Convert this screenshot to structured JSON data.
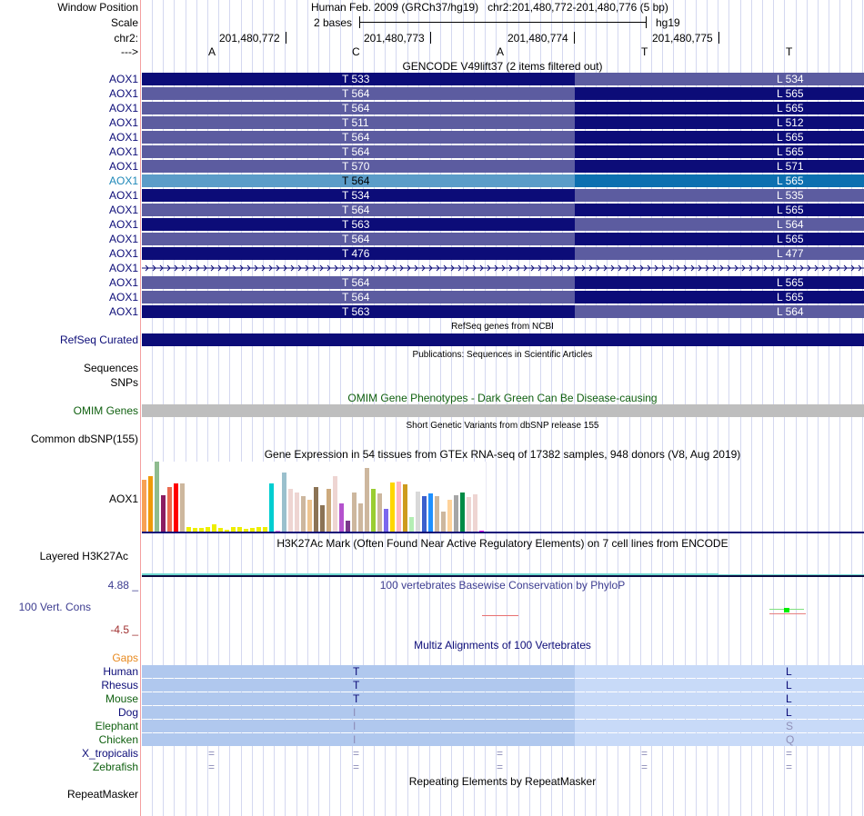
{
  "header": {
    "window_position_label": "Window Position",
    "scale_label": "Scale",
    "chrom_label": "chr2:",
    "strand_label": "--->",
    "assembly_title": "Human Feb. 2009 (GRCh37/hg19)   chr2:201,480,772-201,480,776 (5 bp)",
    "scale_text": "2 bases",
    "scale_assembly": "hg19",
    "positions": [
      "201,480,772",
      "201,480,773",
      "201,480,774",
      "201,480,775"
    ],
    "bases": [
      "A",
      "C",
      "A",
      "T",
      "T"
    ]
  },
  "gencode": {
    "title": "GENCODE V49lift37 (2 items filtered out)",
    "colors": {
      "dark": "#0c0c78",
      "light": "#5c5ca0",
      "highlight_light": "#5b9cc8",
      "highlight_dark": "#0c70b0"
    },
    "rows": [
      {
        "label": "AOX1",
        "left": "T 533",
        "right": "L 534",
        "left_shade": "dark",
        "right_shade": "light"
      },
      {
        "label": "AOX1",
        "left": "T 564",
        "right": "L 565",
        "left_shade": "light",
        "right_shade": "dark"
      },
      {
        "label": "AOX1",
        "left": "T 564",
        "right": "L 565",
        "left_shade": "light",
        "right_shade": "dark"
      },
      {
        "label": "AOX1",
        "left": "T 511",
        "right": "L 512",
        "left_shade": "light",
        "right_shade": "dark"
      },
      {
        "label": "AOX1",
        "left": "T 564",
        "right": "L 565",
        "left_shade": "light",
        "right_shade": "dark"
      },
      {
        "label": "AOX1",
        "left": "T 564",
        "right": "L 565",
        "left_shade": "light",
        "right_shade": "dark"
      },
      {
        "label": "AOX1",
        "left": "T 570",
        "right": "L 571",
        "left_shade": "light",
        "right_shade": "dark"
      },
      {
        "label": "AOX1",
        "left": "T 564",
        "right": "L 565",
        "left_shade": "highlight_light",
        "right_shade": "highlight_dark",
        "highlighted": true
      },
      {
        "label": "AOX1",
        "left": "T 534",
        "right": "L 535",
        "left_shade": "dark",
        "right_shade": "light"
      },
      {
        "label": "AOX1",
        "left": "T 564",
        "right": "L 565",
        "left_shade": "light",
        "right_shade": "dark"
      },
      {
        "label": "AOX1",
        "left": "T 563",
        "right": "L 564",
        "left_shade": "dark",
        "right_shade": "light"
      },
      {
        "label": "AOX1",
        "left": "T 564",
        "right": "L 565",
        "left_shade": "light",
        "right_shade": "dark"
      },
      {
        "label": "AOX1",
        "left": "T 476",
        "right": "L 477",
        "left_shade": "dark",
        "right_shade": "light"
      },
      {
        "label": "AOX1",
        "intron": true
      },
      {
        "label": "AOX1",
        "left": "T 564",
        "right": "L 565",
        "left_shade": "light",
        "right_shade": "dark"
      },
      {
        "label": "AOX1",
        "left": "T 564",
        "right": "L 565",
        "left_shade": "light",
        "right_shade": "dark"
      },
      {
        "label": "AOX1",
        "left": "T 563",
        "right": "L 564",
        "left_shade": "dark",
        "right_shade": "light"
      }
    ]
  },
  "refseq": {
    "title": "RefSeq genes from NCBI",
    "label": "RefSeq Curated"
  },
  "publications": {
    "title": "Publications: Sequences in Scientific Articles",
    "label_line1": "Sequences",
    "label_line2": "SNPs"
  },
  "omim": {
    "title": "OMIM Gene Phenotypes - Dark Green Can Be Disease-causing",
    "label": "OMIM Genes"
  },
  "dbsnp": {
    "title": "Short Genetic Variants from dbSNP release 155",
    "label": "Common dbSNP(155)"
  },
  "gtex": {
    "title": "Gene Expression in 54 tissues from GTEx RNA-seq of 17382 samples, 948 donors (V8, Aug 2019)",
    "label": "AOX1",
    "bars": [
      {
        "v": 0.74,
        "c": "#f7a155"
      },
      {
        "v": 0.79,
        "c": "#ee9a0a"
      },
      {
        "v": 1.0,
        "c": "#8fbc8f"
      },
      {
        "v": 0.52,
        "c": "#8b1c62"
      },
      {
        "v": 0.64,
        "c": "#ea6b50"
      },
      {
        "v": 0.69,
        "c": "#ff0000"
      },
      {
        "v": 0.69,
        "c": "#cdb79e"
      },
      {
        "v": 0.06,
        "c": "#eeee00"
      },
      {
        "v": 0.05,
        "c": "#eeee00"
      },
      {
        "v": 0.05,
        "c": "#eeee00"
      },
      {
        "v": 0.07,
        "c": "#eeee00"
      },
      {
        "v": 0.11,
        "c": "#eeee00"
      },
      {
        "v": 0.05,
        "c": "#eeee00"
      },
      {
        "v": 0.03,
        "c": "#eeee00"
      },
      {
        "v": 0.07,
        "c": "#eeee00"
      },
      {
        "v": 0.07,
        "c": "#eeee00"
      },
      {
        "v": 0.04,
        "c": "#eeee00"
      },
      {
        "v": 0.05,
        "c": "#eeee00"
      },
      {
        "v": 0.07,
        "c": "#eeee00"
      },
      {
        "v": 0.06,
        "c": "#eeee00"
      },
      {
        "v": 0.69,
        "c": "#00ced1"
      },
      {
        "v": 0.01,
        "c": "#ee82ee"
      },
      {
        "v": 0.84,
        "c": "#9ac0cd"
      },
      {
        "v": 0.61,
        "c": "#eed5d2"
      },
      {
        "v": 0.56,
        "c": "#eed5d2"
      },
      {
        "v": 0.51,
        "c": "#cdb79e"
      },
      {
        "v": 0.46,
        "c": "#eec591"
      },
      {
        "v": 0.63,
        "c": "#8b7355"
      },
      {
        "v": 0.38,
        "c": "#8b7355"
      },
      {
        "v": 0.61,
        "c": "#cdaa7d"
      },
      {
        "v": 0.79,
        "c": "#eed5d2"
      },
      {
        "v": 0.4,
        "c": "#b452cd"
      },
      {
        "v": 0.16,
        "c": "#7a378b"
      },
      {
        "v": 0.56,
        "c": "#cdb79e"
      },
      {
        "v": 0.4,
        "c": "#cdb79e"
      },
      {
        "v": 0.91,
        "c": "#cdb79e"
      },
      {
        "v": 0.61,
        "c": "#9acd32"
      },
      {
        "v": 0.55,
        "c": "#cdb79e"
      },
      {
        "v": 0.33,
        "c": "#7b68ee"
      },
      {
        "v": 0.7,
        "c": "#ffd700"
      },
      {
        "v": 0.71,
        "c": "#ffb6c1"
      },
      {
        "v": 0.68,
        "c": "#cd9b1d"
      },
      {
        "v": 0.21,
        "c": "#b4eeb4"
      },
      {
        "v": 0.57,
        "c": "#d9d9d9"
      },
      {
        "v": 0.5,
        "c": "#3a5fcd"
      },
      {
        "v": 0.54,
        "c": "#1e90ff"
      },
      {
        "v": 0.51,
        "c": "#cdb79e"
      },
      {
        "v": 0.29,
        "c": "#cdb79e"
      },
      {
        "v": 0.45,
        "c": "#ffd39b"
      },
      {
        "v": 0.52,
        "c": "#a6a6a6"
      },
      {
        "v": 0.56,
        "c": "#008b45"
      },
      {
        "v": 0.49,
        "c": "#eed5d2"
      },
      {
        "v": 0.53,
        "c": "#eed5d2"
      },
      {
        "v": 0.01,
        "c": "#ff00ff"
      }
    ]
  },
  "h3k27ac": {
    "title": "H3K27Ac Mark (Often Found Near Active Regulatory Elements) on 7 cell lines from ENCODE",
    "label": "Layered H3K27Ac"
  },
  "phylop": {
    "title": "100 vertebrates Basewise Conservation by PhyloP",
    "label": "100 Vert. Cons",
    "max": "4.88 _",
    "min": "-4.5 _"
  },
  "multiz": {
    "title": "Multiz Alignments of 100 Vertebrates",
    "gaps_label": "Gaps",
    "species": [
      {
        "name": "Human",
        "color": "#0c0c78",
        "left": "T",
        "right": "L",
        "faded": false
      },
      {
        "name": "Rhesus",
        "color": "#0c0c78",
        "left": "T",
        "right": "L",
        "faded": false
      },
      {
        "name": "Mouse",
        "color": "#106010",
        "left": "T",
        "right": "L",
        "faded": false
      },
      {
        "name": "Dog",
        "color": "#0c0c78",
        "left": "I",
        "right": "L",
        "faded_left": true
      },
      {
        "name": "Elephant",
        "color": "#106010",
        "left": "I",
        "right": "S",
        "faded_left": true,
        "faded_right": true
      },
      {
        "name": "Chicken",
        "color": "#106010",
        "left": "I",
        "right": "Q",
        "faded_left": true,
        "faded_right": true
      },
      {
        "name": "X_tropicalis",
        "color": "#0c0c78",
        "gap": "="
      },
      {
        "name": "Zebrafish",
        "color": "#106010",
        "gap": "="
      }
    ]
  },
  "repeatmasker": {
    "title": "Repeating Elements by RepeatMasker",
    "label": "RepeatMasker"
  }
}
